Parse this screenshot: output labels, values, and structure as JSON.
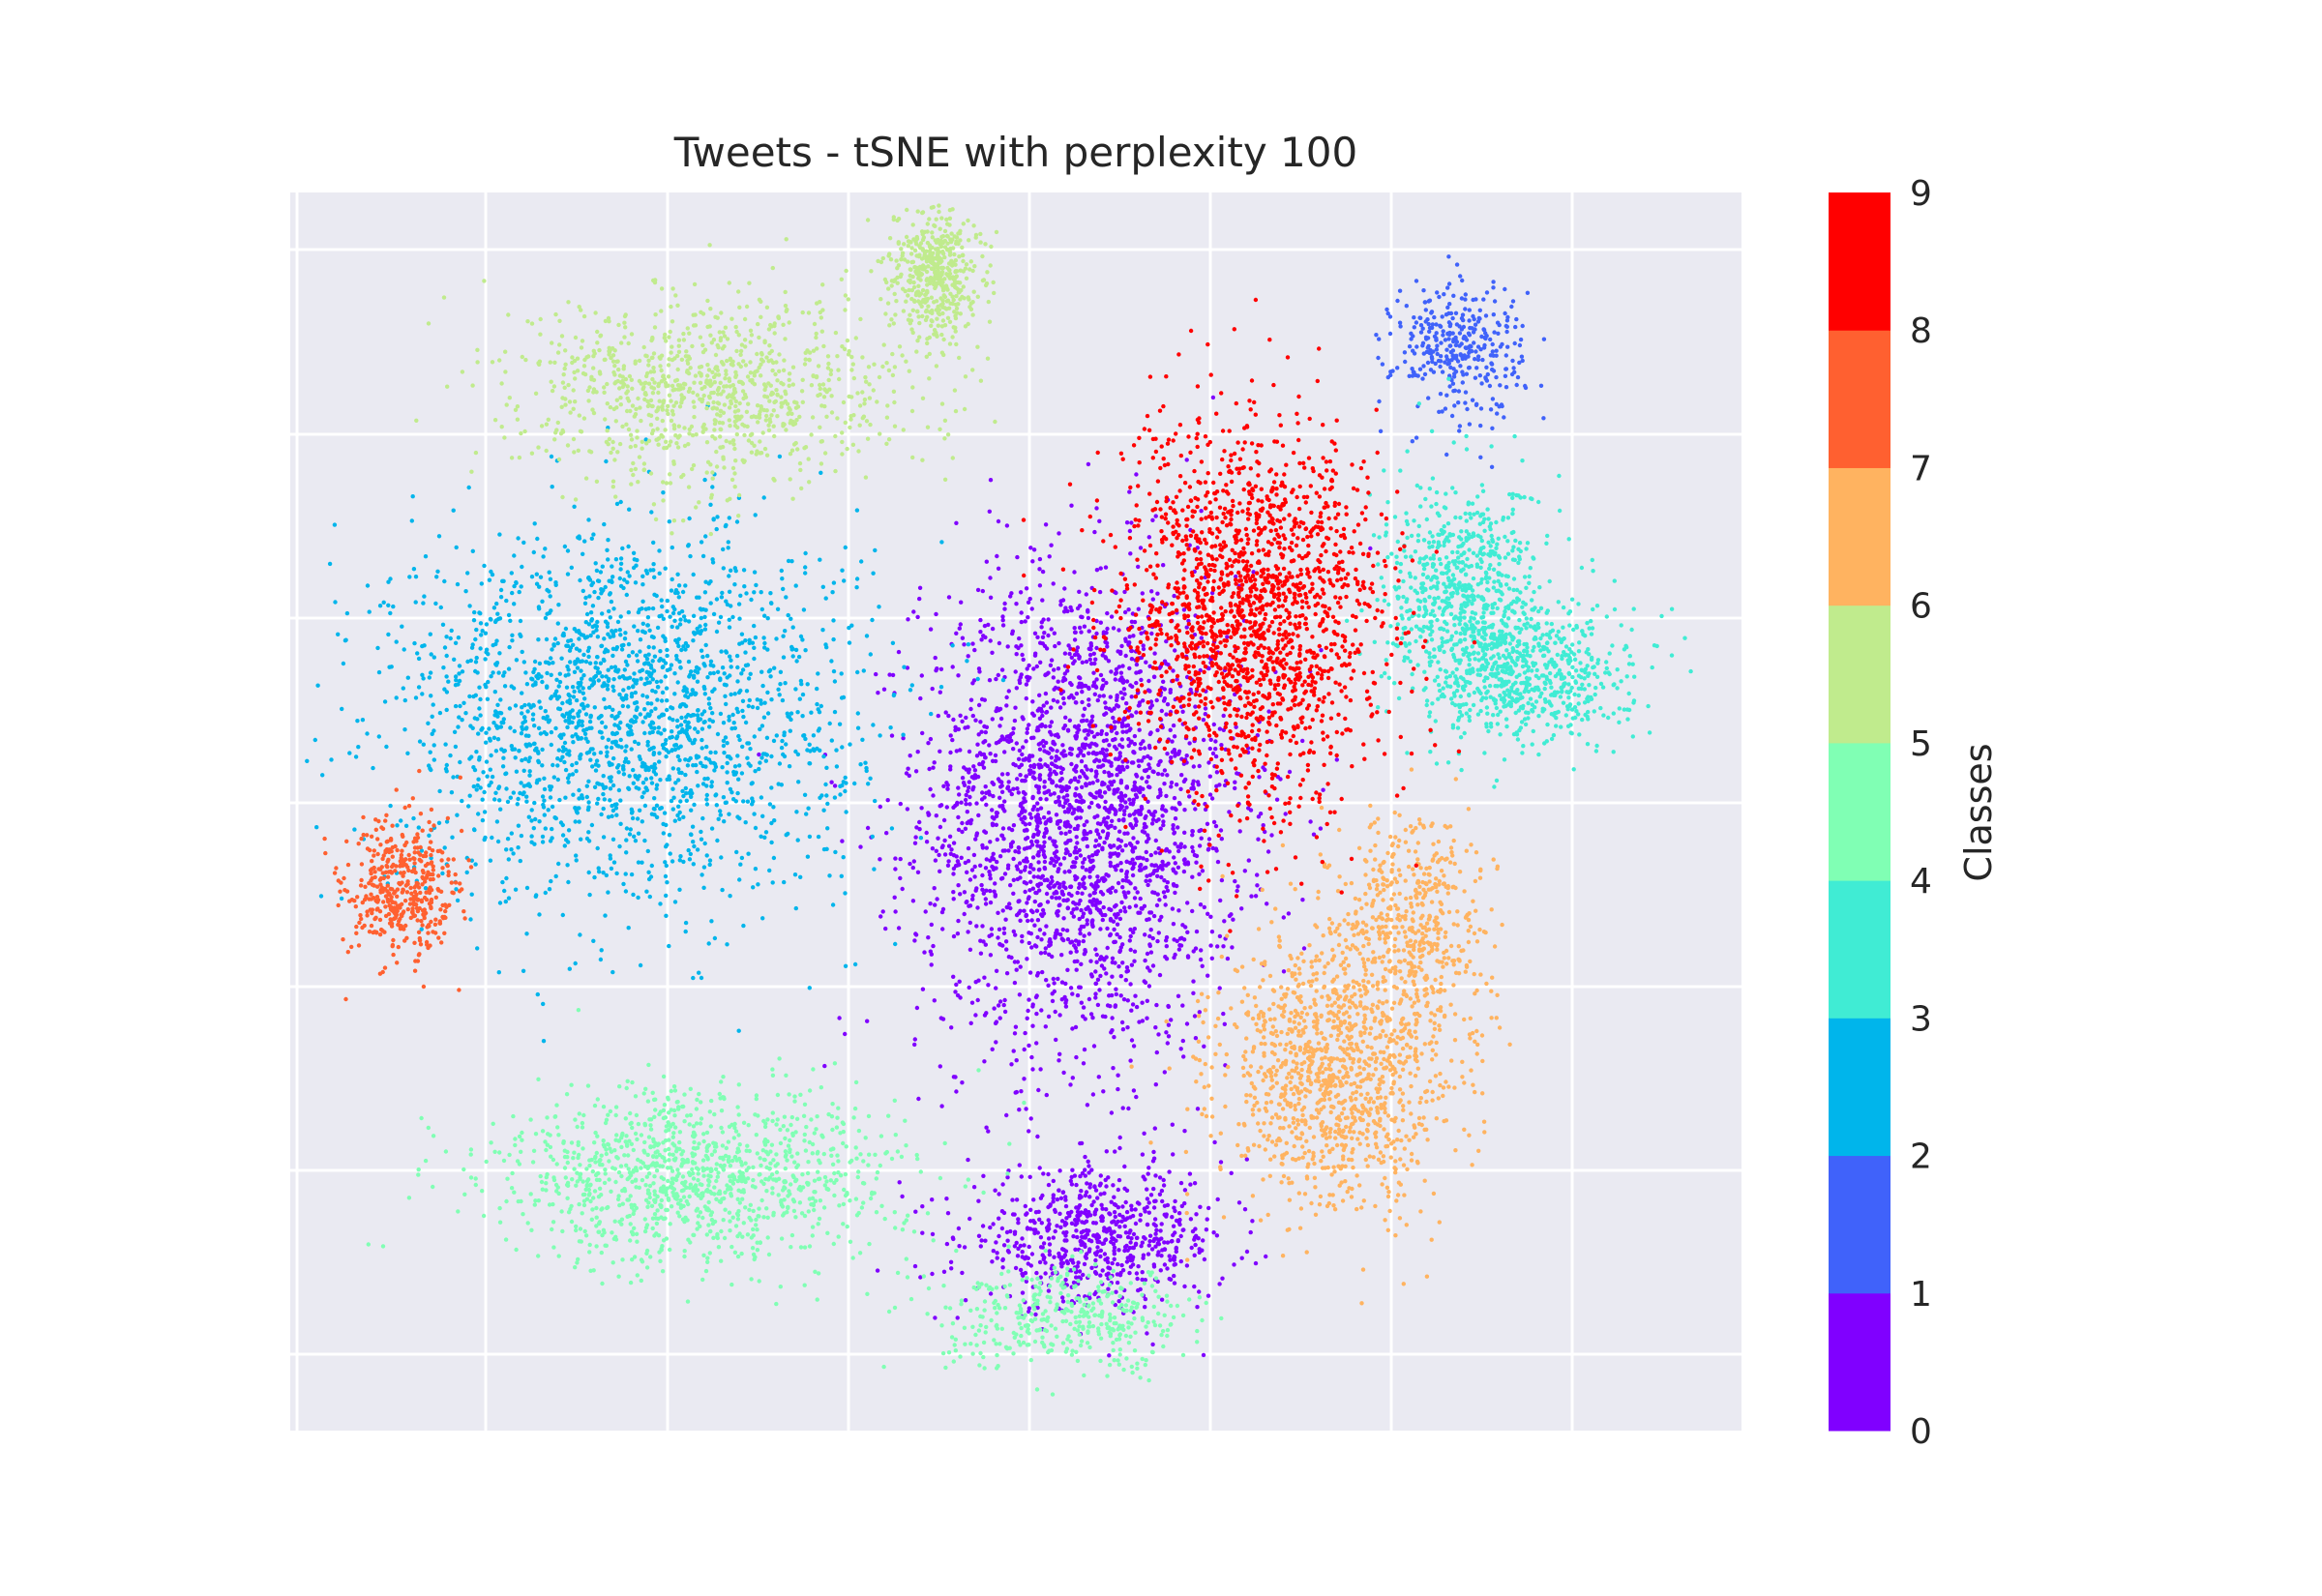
{
  "chart_data": {
    "type": "scatter",
    "title": "Tweets - tSNE with perplexity 100",
    "xlabel": "",
    "ylabel": "",
    "x_ticks_shown": false,
    "y_ticks_shown": false,
    "grid": true,
    "background": "#eaeaf2",
    "colorbar": {
      "label": "Classes",
      "ticks": [
        "0",
        "1",
        "2",
        "3",
        "4",
        "5",
        "6",
        "7",
        "8",
        "9"
      ],
      "colors": [
        "#8000ff",
        "#4062fa",
        "#00b5eb",
        "#40ecd4",
        "#80ffb4",
        "#c0eb8d",
        "#ffb360",
        "#ff6030",
        "#ff0000"
      ]
    },
    "clusters": [
      {
        "class": 0,
        "cx": 0.545,
        "cy": 0.5,
        "rx": 0.11,
        "ry": 0.195,
        "density": 2600
      },
      {
        "class": 0,
        "cx": 0.555,
        "cy": 0.155,
        "rx": 0.09,
        "ry": 0.055,
        "density": 700
      },
      {
        "class": 1,
        "cx": 0.805,
        "cy": 0.875,
        "rx": 0.045,
        "ry": 0.055,
        "density": 350
      },
      {
        "class": 2,
        "cx": 0.23,
        "cy": 0.58,
        "rx": 0.16,
        "ry": 0.15,
        "density": 2100
      },
      {
        "class": 3,
        "cx": 0.81,
        "cy": 0.67,
        "rx": 0.055,
        "ry": 0.095,
        "density": 800
      },
      {
        "class": 3,
        "cx": 0.86,
        "cy": 0.61,
        "rx": 0.065,
        "ry": 0.055,
        "density": 550
      },
      {
        "class": 4,
        "cx": 0.28,
        "cy": 0.205,
        "rx": 0.14,
        "ry": 0.07,
        "density": 1200
      },
      {
        "class": 4,
        "cx": 0.54,
        "cy": 0.09,
        "rx": 0.09,
        "ry": 0.04,
        "density": 400
      },
      {
        "class": 5,
        "cx": 0.29,
        "cy": 0.84,
        "rx": 0.13,
        "ry": 0.075,
        "density": 1000
      },
      {
        "class": 5,
        "cx": 0.445,
        "cy": 0.935,
        "rx": 0.03,
        "ry": 0.06,
        "density": 500
      },
      {
        "class": 6,
        "cx": 0.72,
        "cy": 0.29,
        "rx": 0.08,
        "ry": 0.11,
        "density": 1200
      },
      {
        "class": 6,
        "cx": 0.775,
        "cy": 0.41,
        "rx": 0.05,
        "ry": 0.09,
        "density": 500
      },
      {
        "class": 7,
        "cx": 0.075,
        "cy": 0.435,
        "rx": 0.04,
        "ry": 0.06,
        "density": 450
      },
      {
        "class": 8,
        "cx": 0.665,
        "cy": 0.66,
        "rx": 0.09,
        "ry": 0.15,
        "density": 1800
      }
    ]
  }
}
